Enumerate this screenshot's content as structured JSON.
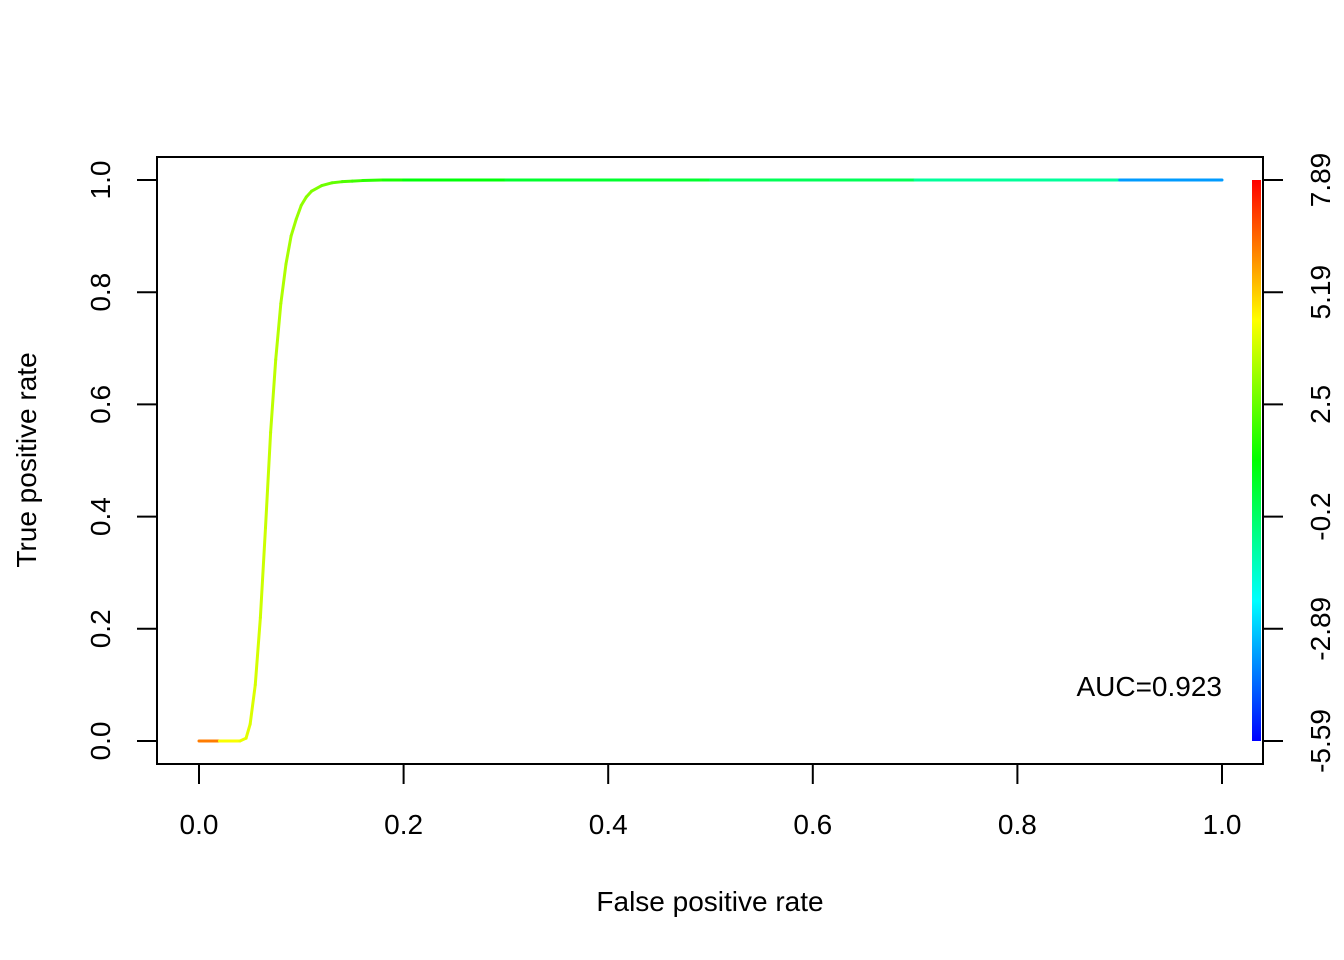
{
  "chart_data": {
    "type": "line",
    "title": "",
    "xlabel": "False positive rate",
    "ylabel": "True positive rate",
    "xlim": [
      0,
      1
    ],
    "ylim": [
      0,
      1
    ],
    "x_ticks": [
      "0.0",
      "0.2",
      "0.4",
      "0.6",
      "0.8",
      "1.0"
    ],
    "y_ticks": [
      "0.0",
      "0.2",
      "0.4",
      "0.6",
      "0.8",
      "1.0"
    ],
    "grid": false,
    "series": [
      {
        "x": [
          0.0,
          0.02,
          0.04,
          0.046,
          0.05,
          0.055,
          0.06,
          0.065,
          0.07,
          0.075,
          0.08,
          0.085,
          0.09,
          0.095,
          0.1,
          0.105,
          0.11,
          0.12,
          0.13,
          0.14,
          0.15,
          0.16,
          0.18,
          0.2,
          0.3,
          0.5,
          0.7,
          0.9,
          1.0
        ],
        "y": [
          0.0,
          0.0,
          0.0,
          0.005,
          0.03,
          0.1,
          0.22,
          0.38,
          0.55,
          0.68,
          0.78,
          0.85,
          0.9,
          0.93,
          0.955,
          0.97,
          0.98,
          0.99,
          0.995,
          0.997,
          0.998,
          0.999,
          1.0,
          1.0,
          1.0,
          1.0,
          1.0,
          1.0,
          1.0
        ],
        "cutoff": [
          7.89,
          4.6,
          4.3,
          4.2,
          4.1,
          4.0,
          3.9,
          3.8,
          3.7,
          3.6,
          3.5,
          3.4,
          3.3,
          3.2,
          3.1,
          3.0,
          2.9,
          2.7,
          2.5,
          2.3,
          2.1,
          1.9,
          1.6,
          1.3,
          0.8,
          0.3,
          -0.3,
          -1.5,
          -5.59
        ]
      }
    ],
    "colorbar": {
      "ticks": [
        "-5.59",
        "-2.89",
        "-0.2",
        "2.5",
        "5.19",
        "7.89"
      ],
      "min": -5.59,
      "max": 7.89,
      "colors": [
        "#0000ff",
        "#00ffff",
        "#00ff00",
        "#ffff00",
        "#ff0000"
      ]
    },
    "annotation": "AUC=0.923"
  }
}
